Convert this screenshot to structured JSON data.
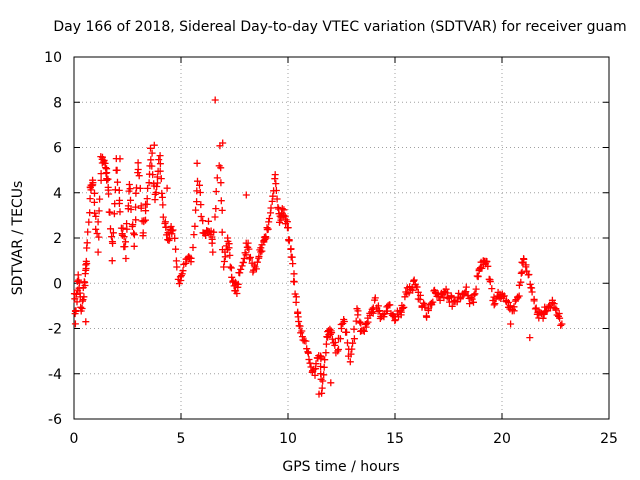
{
  "chart_data": {
    "type": "scatter",
    "title": "Day 166 of 2018, Sidereal Day-to-day VTEC variation (SDTVAR) for receiver guam",
    "xlabel": "GPS time / hours",
    "ylabel": "SDTVAR / TECUs",
    "xlim": [
      0,
      25
    ],
    "ylim": [
      -6,
      10
    ],
    "xticks": [
      0,
      5,
      10,
      15,
      20,
      25
    ],
    "yticks": [
      -6,
      -4,
      -2,
      0,
      2,
      4,
      6,
      8,
      10
    ],
    "grid": true,
    "marker": "+",
    "color": "#ff0000",
    "anchors": [
      [
        0.0,
        -0.3
      ],
      [
        0.05,
        -1.6
      ],
      [
        0.2,
        0.3
      ],
      [
        0.35,
        -1.1
      ],
      [
        0.5,
        0.0
      ],
      [
        0.6,
        1.0
      ],
      [
        0.75,
        4.1
      ],
      [
        0.9,
        4.5
      ],
      [
        1.1,
        1.6
      ],
      [
        1.3,
        5.5
      ],
      [
        1.5,
        5.0
      ],
      [
        1.6,
        4.2
      ],
      [
        1.8,
        1.2
      ],
      [
        2.0,
        5.4
      ],
      [
        2.2,
        2.6
      ],
      [
        2.4,
        1.3
      ],
      [
        2.6,
        4.4
      ],
      [
        2.8,
        1.6
      ],
      [
        3.0,
        5.5
      ],
      [
        3.2,
        2.2
      ],
      [
        3.4,
        3.6
      ],
      [
        3.6,
        5.9
      ],
      [
        3.8,
        3.5
      ],
      [
        4.0,
        5.6
      ],
      [
        4.2,
        3.0
      ],
      [
        4.4,
        2.0
      ],
      [
        4.6,
        2.5
      ],
      [
        4.9,
        0.0
      ],
      [
        5.2,
        0.8
      ],
      [
        5.5,
        1.2
      ],
      [
        5.8,
        4.5
      ],
      [
        6.1,
        2.0
      ],
      [
        6.3,
        2.6
      ],
      [
        6.5,
        1.6
      ],
      [
        6.8,
        6.0
      ],
      [
        7.0,
        0.9
      ],
      [
        7.2,
        2.0
      ],
      [
        7.4,
        0.0
      ],
      [
        7.6,
        -0.3
      ],
      [
        7.9,
        1.0
      ],
      [
        8.1,
        1.8
      ],
      [
        8.4,
        0.5
      ],
      [
        8.7,
        1.3
      ],
      [
        8.9,
        2.0
      ],
      [
        9.1,
        2.5
      ],
      [
        9.4,
        4.6
      ],
      [
        9.6,
        2.8
      ],
      [
        9.8,
        3.2
      ],
      [
        10.0,
        2.3
      ],
      [
        10.2,
        1.0
      ],
      [
        10.4,
        -1.0
      ],
      [
        10.6,
        -2.0
      ],
      [
        10.9,
        -3.0
      ],
      [
        11.2,
        -4.0
      ],
      [
        11.5,
        -3.0
      ],
      [
        11.6,
        -4.8
      ],
      [
        11.8,
        -2.4
      ],
      [
        12.0,
        -2.0
      ],
      [
        12.3,
        -3.0
      ],
      [
        12.6,
        -1.5
      ],
      [
        12.9,
        -3.5
      ],
      [
        13.2,
        -1.3
      ],
      [
        13.5,
        -2.2
      ],
      [
        13.8,
        -1.5
      ],
      [
        14.1,
        -0.8
      ],
      [
        14.4,
        -1.6
      ],
      [
        14.7,
        -1.0
      ],
      [
        15.0,
        -1.5
      ],
      [
        15.3,
        -1.3
      ],
      [
        15.6,
        -0.3
      ],
      [
        15.9,
        0.0
      ],
      [
        16.2,
        -0.8
      ],
      [
        16.5,
        -1.3
      ],
      [
        16.8,
        -0.5
      ],
      [
        17.1,
        -0.6
      ],
      [
        17.4,
        -0.4
      ],
      [
        17.7,
        -0.8
      ],
      [
        18.0,
        -0.6
      ],
      [
        18.3,
        -0.3
      ],
      [
        18.6,
        -0.9
      ],
      [
        18.9,
        0.5
      ],
      [
        19.1,
        0.9
      ],
      [
        19.3,
        0.8
      ],
      [
        19.6,
        -0.8
      ],
      [
        19.9,
        -0.4
      ],
      [
        20.2,
        -0.9
      ],
      [
        20.5,
        -1.1
      ],
      [
        20.8,
        -0.5
      ],
      [
        21.0,
        1.2
      ],
      [
        21.3,
        0.1
      ],
      [
        21.6,
        -1.3
      ],
      [
        21.9,
        -1.4
      ],
      [
        22.2,
        -0.9
      ],
      [
        22.5,
        -1.0
      ],
      [
        22.8,
        -1.8
      ]
    ],
    "outliers": [
      [
        6.6,
        8.1
      ],
      [
        6.95,
        6.2
      ],
      [
        3.75,
        6.1
      ],
      [
        1.25,
        5.6
      ],
      [
        5.75,
        5.3
      ],
      [
        2.15,
        5.5
      ],
      [
        8.05,
        3.9
      ],
      [
        0.55,
        -1.7
      ],
      [
        11.45,
        -4.9
      ],
      [
        12.0,
        -4.4
      ],
      [
        21.3,
        -2.4
      ],
      [
        20.4,
        -1.8
      ],
      [
        9.4,
        4.8
      ],
      [
        4.35,
        4.2
      ]
    ]
  }
}
